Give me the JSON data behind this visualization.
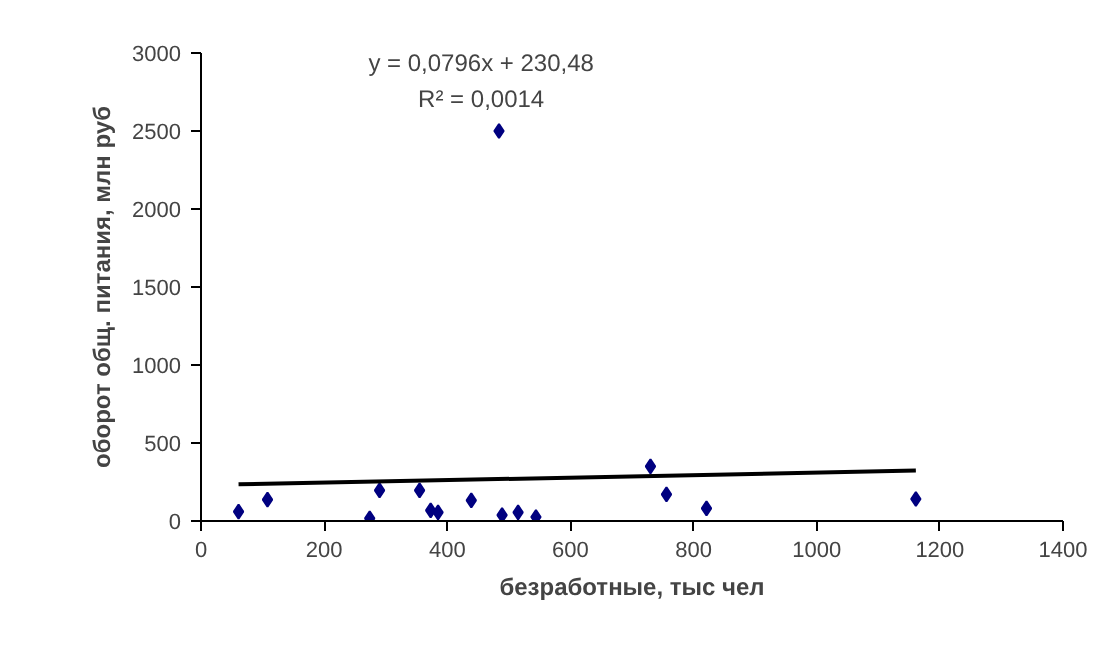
{
  "chart_data": {
    "type": "scatter",
    "xlabel": "безработные, тыс чел",
    "ylabel": "оборот общ. питания, млн руб",
    "xlim": [
      0,
      1400
    ],
    "ylim": [
      0,
      3000
    ],
    "xticks": [
      0,
      200,
      400,
      600,
      800,
      1000,
      1200,
      1400
    ],
    "yticks": [
      0,
      500,
      1000,
      1500,
      2000,
      2500,
      3000
    ],
    "grid": false,
    "annotations": [
      "y = 0,0796x + 230,48",
      "R² = 0,0014"
    ],
    "series": [
      {
        "marker": "diamond",
        "color": "#000080",
        "x": [
          61,
          108,
          274,
          290,
          355,
          373,
          385,
          439,
          484,
          489,
          515,
          544,
          730,
          756,
          821,
          1161
        ],
        "values": [
          60,
          137,
          17,
          196,
          196,
          68,
          55,
          132,
          2500,
          38,
          55,
          26,
          350,
          171,
          81,
          141
        ]
      },
      {
        "type": "line",
        "marker": "none",
        "color": "#000000",
        "line_style": "solid",
        "x": [
          61,
          1161
        ],
        "values": [
          235,
          323
        ]
      }
    ]
  }
}
